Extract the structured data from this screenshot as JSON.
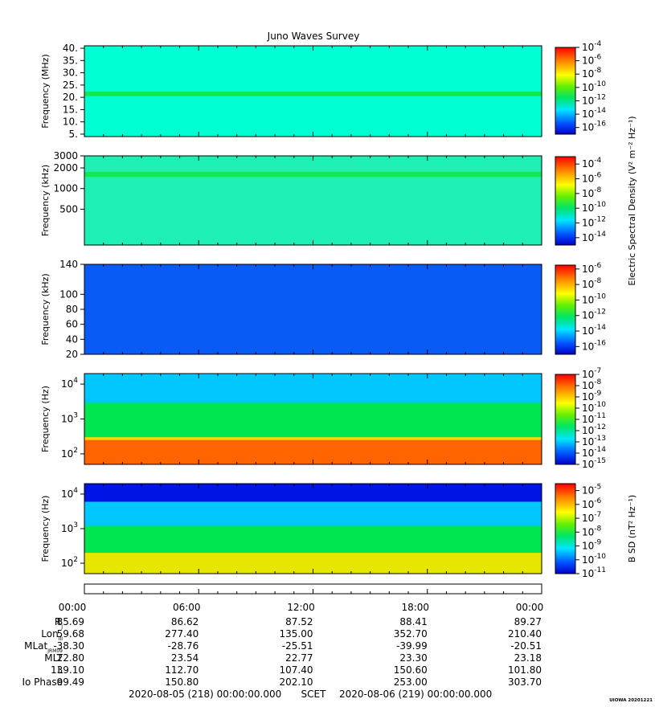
{
  "title": "Juno Waves Survey",
  "stamp": "UIOWA 20201221",
  "chart_data": [
    {
      "type": "heatmap",
      "ylabel": "Frequency (MHz)",
      "ylim": [
        4,
        41
      ],
      "yticks": [
        "5.",
        "10.",
        "15.",
        "20.",
        "25.",
        "30.",
        "35.",
        "40."
      ],
      "ytick_values": [
        5,
        10,
        15,
        20,
        25,
        30,
        35,
        40
      ],
      "bands": [
        {
          "ymin": 4,
          "ymax": 41,
          "color": "#00ffd2"
        },
        {
          "ymin": 20.5,
          "ymax": 22.3,
          "color": "#14e650"
        }
      ],
      "colorbar": {
        "ticks": [
          "-4",
          "-6",
          "-8",
          "-10",
          "-12",
          "-14",
          "-16"
        ],
        "tick_exponents": [
          -4,
          -6,
          -8,
          -10,
          -12,
          -14,
          -16
        ],
        "range": [
          -17,
          -4
        ],
        "label": ""
      }
    },
    {
      "type": "heatmap",
      "ylabel": "Frequency (kHz)",
      "ylim": [
        150,
        3000
      ],
      "yscale": "log",
      "yticks": [
        "3000",
        "2000",
        "1000",
        "500"
      ],
      "ytick_values": [
        3000,
        2000,
        1000,
        500
      ],
      "bands": [
        {
          "ymin": 150,
          "ymax": 3000,
          "color": "#1ef0b4"
        },
        {
          "ymin": 1480,
          "ymax": 1760,
          "color": "#14e650"
        }
      ],
      "colorbar": {
        "ticks": [
          "-4",
          "-6",
          "-8",
          "-10",
          "-12",
          "-14"
        ],
        "tick_exponents": [
          -4,
          -6,
          -8,
          -10,
          -12,
          -14
        ],
        "range": [
          -15,
          -3
        ],
        "label": "Electric Spectral Density (V² m⁻² Hz⁻¹)"
      }
    },
    {
      "type": "heatmap",
      "ylabel": "Frequency (kHz)",
      "ylim": [
        20,
        140
      ],
      "yticks": [
        "140",
        "100",
        "80",
        "60",
        "40",
        "20"
      ],
      "ytick_values": [
        140,
        100,
        80,
        60,
        40,
        20
      ],
      "bands": [
        {
          "ymin": 20,
          "ymax": 140,
          "color": "#0a5af5"
        }
      ],
      "colorbar": {
        "ticks": [
          "-6",
          "-8",
          "-10",
          "-12",
          "-14",
          "-16"
        ],
        "tick_exponents": [
          -6,
          -8,
          -10,
          -12,
          -14,
          -16
        ],
        "range": [
          -17,
          -5.5
        ],
        "label": ""
      }
    },
    {
      "type": "heatmap",
      "ylabel": "Frequency (Hz)",
      "ylim": [
        50,
        20000
      ],
      "yscale": "log",
      "yticks": [
        "4",
        "3",
        "2"
      ],
      "ytick_values": [
        10000,
        1000,
        100
      ],
      "bands": [
        {
          "ymin": 50,
          "ymax": 20000,
          "color": "#00c8ff"
        },
        {
          "ymin": 50,
          "ymax": 3000,
          "color": "#00e650"
        },
        {
          "ymin": 50,
          "ymax": 300,
          "color": "#ffd700"
        },
        {
          "ymin": 50,
          "ymax": 250,
          "color": "#ff6400"
        }
      ],
      "colorbar": {
        "ticks": [
          "-7",
          "-8",
          "-9",
          "-10",
          "-11",
          "-12",
          "-13",
          "-14",
          "-15"
        ],
        "tick_exponents": [
          -7,
          -8,
          -9,
          -10,
          -11,
          -12,
          -13,
          -14,
          -15
        ],
        "range": [
          -15,
          -7
        ],
        "label": ""
      }
    },
    {
      "type": "heatmap",
      "ylabel": "Frequency (Hz)",
      "ylim": [
        50,
        20000
      ],
      "yscale": "log",
      "yticks": [
        "4",
        "3",
        "2"
      ],
      "ytick_values": [
        10000,
        1000,
        100
      ],
      "bands": [
        {
          "ymin": 50,
          "ymax": 20000,
          "color": "#0014e6"
        },
        {
          "ymin": 50,
          "ymax": 6000,
          "color": "#00c8ff"
        },
        {
          "ymin": 50,
          "ymax": 1200,
          "color": "#00e650"
        },
        {
          "ymin": 50,
          "ymax": 200,
          "color": "#e6e600"
        }
      ],
      "colorbar": {
        "ticks": [
          "-5",
          "-6",
          "-7",
          "-8",
          "-9",
          "-10",
          "-11"
        ],
        "tick_exponents": [
          -5,
          -6,
          -7,
          -8,
          -9,
          -10,
          -11
        ],
        "range": [
          -11,
          -4.5
        ],
        "label": "B SD (nT² Hz⁻¹)"
      }
    }
  ],
  "time_axis": {
    "ticks": [
      "00:00",
      "06:00",
      "12:00",
      "18:00",
      "00:00"
    ],
    "rows": [
      {
        "label": "R",
        "sub": "J",
        "values": [
          "85.69",
          "86.62",
          "87.52",
          "88.41",
          "89.27"
        ]
      },
      {
        "label": "Lon",
        "sub": "III",
        "values": [
          "59.68",
          "277.40",
          "135.00",
          "352.70",
          "210.40"
        ]
      },
      {
        "label": "MLat",
        "sub": "JRM09",
        "values": [
          "-38.30",
          "-28.76",
          "-25.51",
          "-39.99",
          "-20.51"
        ]
      },
      {
        "label": "MLT",
        "sub": "",
        "values": [
          "22.80",
          "23.54",
          "22.77",
          "23.30",
          "23.18"
        ]
      },
      {
        "label": "L",
        "sub": "",
        "values": [
          "139.10",
          "112.70",
          "107.40",
          "150.60",
          "101.80"
        ]
      },
      {
        "label": "Io Phase",
        "sub": "",
        "values": [
          "99.49",
          "150.80",
          "202.10",
          "253.00",
          "303.70"
        ]
      }
    ],
    "start": "2020-08-05 (218) 00:00:00.000",
    "label": "SCET",
    "end": "2020-08-06 (219) 00:00:00.000"
  }
}
